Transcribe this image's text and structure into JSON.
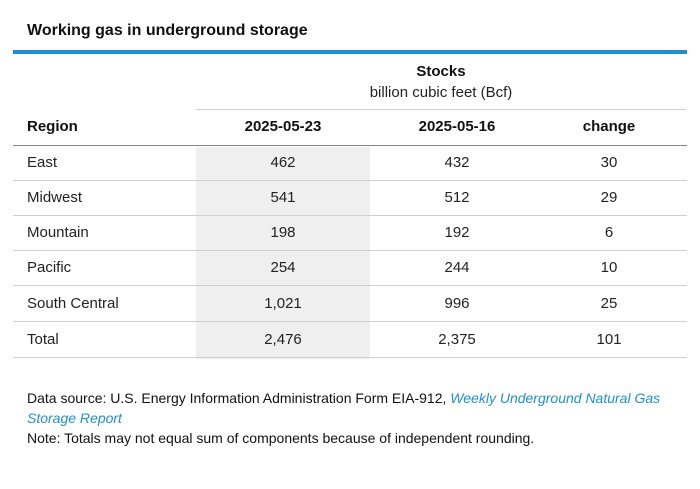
{
  "title": "Working gas in underground storage",
  "group_header": {
    "label": "Stocks",
    "unit": "billion cubic feet (Bcf)"
  },
  "columns": {
    "region": "Region",
    "week1": "2025-05-23",
    "week2": "2025-05-16",
    "change": "change"
  },
  "rows": [
    {
      "region": "East",
      "week1": "462",
      "week2": "432",
      "change": "30"
    },
    {
      "region": "Midwest",
      "week1": "541",
      "week2": "512",
      "change": "29"
    },
    {
      "region": "Mountain",
      "week1": "198",
      "week2": "192",
      "change": "6"
    },
    {
      "region": "Pacific",
      "week1": "254",
      "week2": "244",
      "change": "10"
    },
    {
      "region": "South Central",
      "week1": "1,021",
      "week2": "996",
      "change": "25"
    },
    {
      "region": "Total",
      "week1": "2,476",
      "week2": "2,375",
      "change": "101"
    }
  ],
  "footer": {
    "source_prefix": "Data source: U.S. Energy Information Administration Form EIA-912, ",
    "source_link": "Weekly Underground Natural Gas Storage Report",
    "note": "Note: Totals may not equal sum of components because of independent rounding."
  },
  "colors": {
    "accent": "#1f8fd1",
    "shade": "#efefef"
  }
}
